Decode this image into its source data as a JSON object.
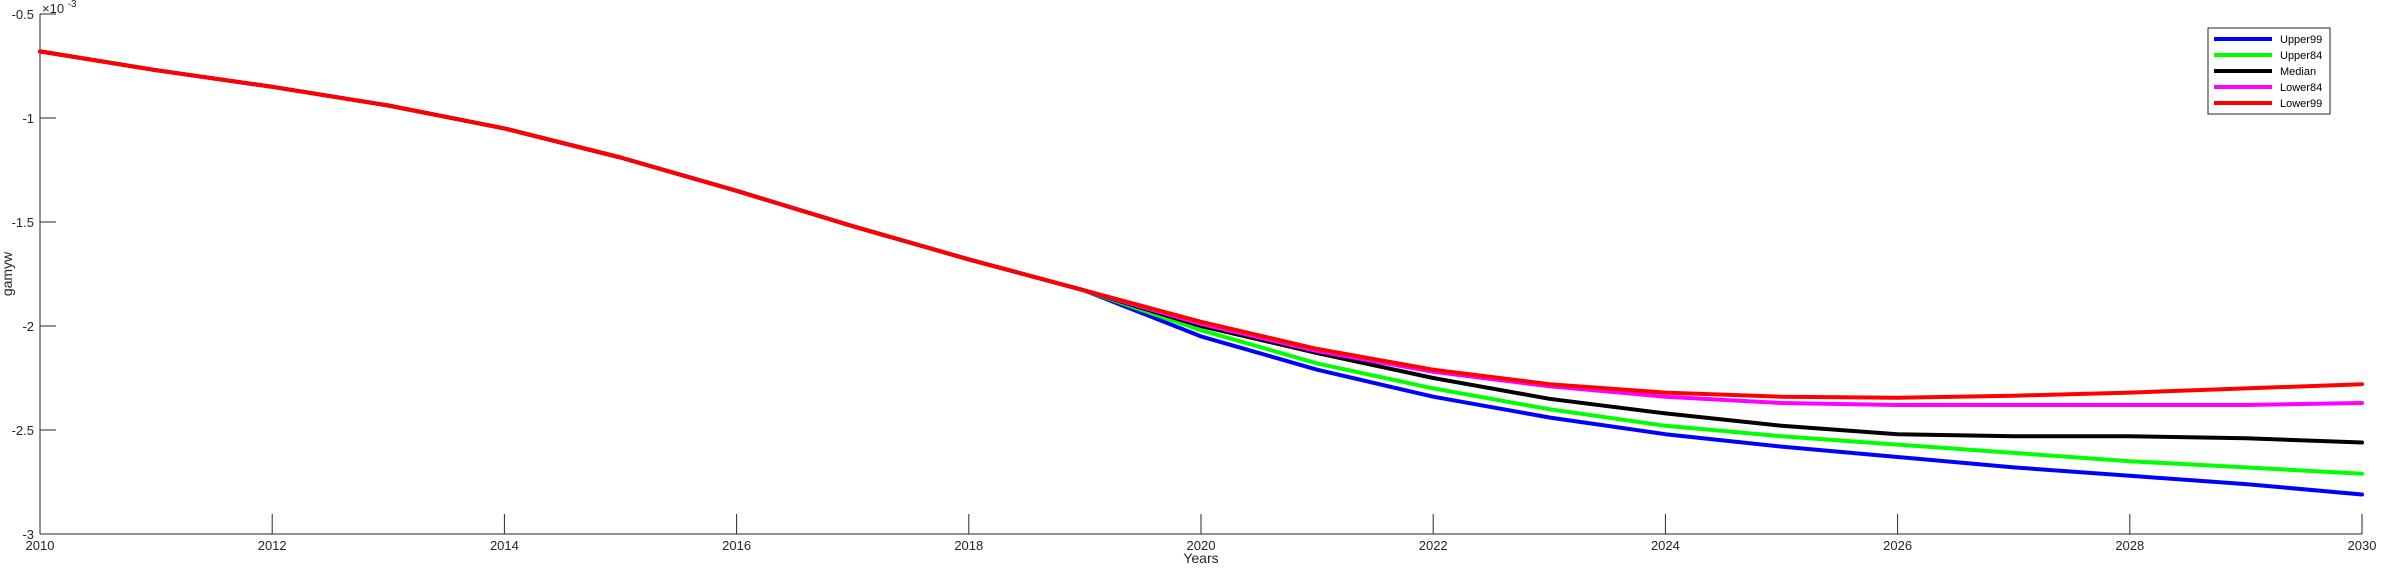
{
  "chart_data": {
    "type": "line",
    "title": "",
    "xlabel": "Years",
    "ylabel": "gamyw",
    "exponent_label": "×10",
    "exponent_power": "-3",
    "xlim": [
      2010,
      2030
    ],
    "ylim": [
      -3,
      -0.5
    ],
    "xticks": [
      2010,
      2012,
      2014,
      2016,
      2018,
      2020,
      2022,
      2024,
      2026,
      2028,
      2030
    ],
    "yticks": [
      -3,
      -2.5,
      -2,
      -1.5,
      -1,
      -0.5
    ],
    "xtick_labels": [
      "2010",
      "2012",
      "2014",
      "2016",
      "2018",
      "2020",
      "2022",
      "2024",
      "2026",
      "2028",
      "2030"
    ],
    "ytick_labels": [
      "-3",
      "-2.5",
      "-2",
      "-1.5",
      "-1",
      "-0.5"
    ],
    "grid": false,
    "legend_position": "top-right",
    "x": [
      2010,
      2011,
      2012,
      2013,
      2014,
      2015,
      2016,
      2017,
      2018,
      2019,
      2020,
      2021,
      2022,
      2023,
      2024,
      2025,
      2026,
      2027,
      2028,
      2029,
      2030
    ],
    "series": [
      {
        "name": "Upper99",
        "color": "#0000ff",
        "values": [
          -0.68,
          -0.77,
          -0.85,
          -0.94,
          -1.05,
          -1.19,
          -1.35,
          -1.52,
          -1.68,
          -1.83,
          -2.05,
          -2.21,
          -2.34,
          -2.44,
          -2.52,
          -2.58,
          -2.63,
          -2.68,
          -2.72,
          -2.76,
          -2.81
        ]
      },
      {
        "name": "Upper84",
        "color": "#00ff00",
        "values": [
          -0.68,
          -0.77,
          -0.85,
          -0.94,
          -1.05,
          -1.19,
          -1.35,
          -1.52,
          -1.68,
          -1.83,
          -2.02,
          -2.18,
          -2.3,
          -2.4,
          -2.48,
          -2.53,
          -2.57,
          -2.61,
          -2.65,
          -2.68,
          -2.71
        ]
      },
      {
        "name": "Median",
        "color": "#000000",
        "values": [
          -0.68,
          -0.77,
          -0.85,
          -0.94,
          -1.05,
          -1.19,
          -1.35,
          -1.52,
          -1.68,
          -1.83,
          -2.0,
          -2.13,
          -2.25,
          -2.35,
          -2.42,
          -2.48,
          -2.52,
          -2.53,
          -2.53,
          -2.54,
          -2.56
        ]
      },
      {
        "name": "Lower84",
        "color": "#ff00ff",
        "values": [
          -0.68,
          -0.77,
          -0.85,
          -0.94,
          -1.05,
          -1.19,
          -1.35,
          -1.52,
          -1.68,
          -1.83,
          -1.99,
          -2.12,
          -2.22,
          -2.29,
          -2.34,
          -2.37,
          -2.38,
          -2.38,
          -2.38,
          -2.38,
          -2.37
        ]
      },
      {
        "name": "Lower99",
        "color": "#ff0000",
        "values": [
          -0.68,
          -0.77,
          -0.85,
          -0.94,
          -1.05,
          -1.19,
          -1.35,
          -1.52,
          -1.68,
          -1.83,
          -1.98,
          -2.11,
          -2.21,
          -2.28,
          -2.32,
          -2.34,
          -2.345,
          -2.335,
          -2.32,
          -2.3,
          -2.28
        ]
      }
    ]
  }
}
